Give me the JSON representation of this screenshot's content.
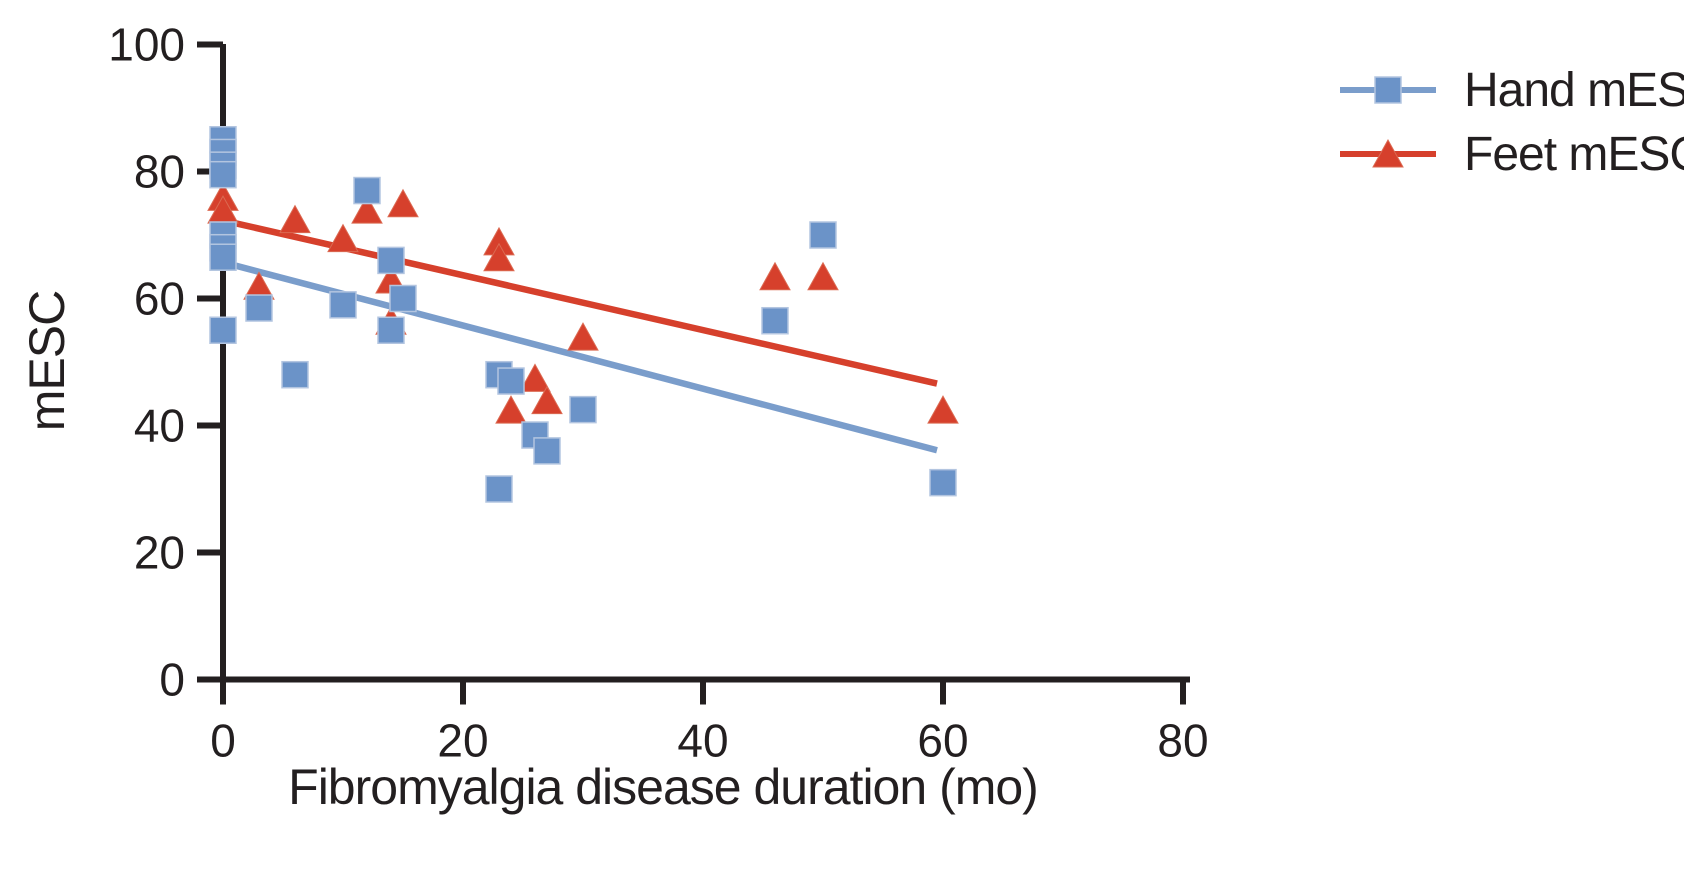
{
  "chart_data": {
    "type": "scatter",
    "title": "",
    "xlabel": "Fibromyalgia disease duration (mo)",
    "ylabel": "mESC",
    "xlim": [
      0,
      80
    ],
    "ylim": [
      0,
      100
    ],
    "xticks": [
      0,
      20,
      40,
      60,
      80
    ],
    "yticks": [
      0,
      20,
      40,
      60,
      80,
      100
    ],
    "grid": false,
    "legend_position": "top-right",
    "ink_color": "#231f20",
    "series": [
      {
        "name": "Hand mESC",
        "marker": "square",
        "color": "#6b93c8",
        "border_color": "#b3c5e0",
        "line_color": "#7a9dcb",
        "points": [
          [
            0,
            85
          ],
          [
            0,
            83
          ],
          [
            0,
            81
          ],
          [
            0,
            79.5
          ],
          [
            0,
            70
          ],
          [
            0,
            68
          ],
          [
            0,
            66.5
          ],
          [
            0,
            55
          ],
          [
            3,
            58.5
          ],
          [
            6,
            48
          ],
          [
            10,
            59
          ],
          [
            12,
            77
          ],
          [
            14,
            66
          ],
          [
            14,
            55
          ],
          [
            15,
            60
          ],
          [
            23,
            48
          ],
          [
            23,
            30
          ],
          [
            24,
            47
          ],
          [
            26,
            38.5
          ],
          [
            27,
            36
          ],
          [
            30,
            42.5
          ],
          [
            46,
            56.5
          ],
          [
            50,
            70
          ],
          [
            60,
            31
          ]
        ],
        "trend": {
          "x1": 0,
          "y1": 65.7,
          "x2": 59.5,
          "y2": 36.1
        }
      },
      {
        "name": "Feet mESC",
        "marker": "triangle",
        "color": "#d6402c",
        "border_color": "#db6a52",
        "line_color": "#d6402c",
        "points": [
          [
            0,
            76
          ],
          [
            0,
            74
          ],
          [
            3,
            62
          ],
          [
            6,
            72.5
          ],
          [
            10,
            69.5
          ],
          [
            12,
            74
          ],
          [
            14,
            63
          ],
          [
            14,
            56.5
          ],
          [
            15,
            75
          ],
          [
            23,
            69
          ],
          [
            23,
            66.5
          ],
          [
            24,
            42.5
          ],
          [
            26,
            47.5
          ],
          [
            27,
            44
          ],
          [
            30,
            54
          ],
          [
            46,
            63.5
          ],
          [
            50,
            63.5
          ],
          [
            60,
            42.5
          ]
        ],
        "trend": {
          "x1": 0,
          "y1": 72.3,
          "x2": 59.5,
          "y2": 46.6
        }
      }
    ]
  }
}
